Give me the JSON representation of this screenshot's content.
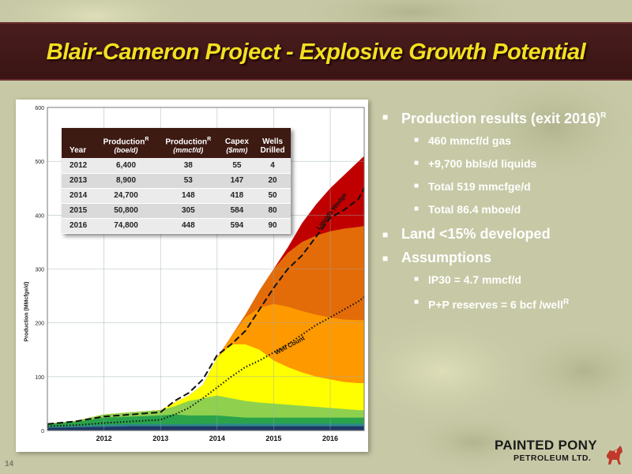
{
  "slide": {
    "title": "Blair-Cameron Project - Explosive Growth Potential",
    "page_number": "14"
  },
  "table": {
    "headers": {
      "year": "Year",
      "prod_boe": "Production",
      "prod_boe_unit": "(boe/d)",
      "prod_mmcf": "Production",
      "prod_mmcf_unit": "(mmcf/d)",
      "capex": "Capex",
      "capex_unit": "($mm)",
      "wells_1": "Wells",
      "wells_2": "Drilled",
      "superscript": "R"
    },
    "rows": [
      {
        "year": "2012",
        "boe": "6,400",
        "mmcf": "38",
        "capex": "55",
        "wells": "4"
      },
      {
        "year": "2013",
        "boe": "8,900",
        "mmcf": "53",
        "capex": "147",
        "wells": "20"
      },
      {
        "year": "2014",
        "boe": "24,700",
        "mmcf": "148",
        "capex": "418",
        "wells": "50"
      },
      {
        "year": "2015",
        "boe": "50,800",
        "mmcf": "305",
        "capex": "584",
        "wells": "80"
      },
      {
        "year": "2016",
        "boe": "74,800",
        "mmcf": "448",
        "capex": "594",
        "wells": "90"
      }
    ]
  },
  "bullets": {
    "production_results": "Production results (exit 2016)",
    "production_results_sup": "R",
    "gas": "460 mmcf/d gas",
    "liquids": "+9,700 bbls/d liquids",
    "total_mmcfge": "Total 519 mmcfge/d",
    "total_mboe": "Total 86.4 mboe/d",
    "land": "Land <15% developed",
    "assumptions": "Assumptions",
    "ip30": "IP30 = 4.7 mmcf/d",
    "reserves": "P+P reserves = 6 bcf /well",
    "reserves_sup": "R"
  },
  "logo": {
    "line1": "PAINTED PONY",
    "line2": "PETROLEUM LTD."
  },
  "colors": {
    "title_bar": "#3f1717",
    "title_text": "#f3e020",
    "table_header": "#3d1a12",
    "layer_navy": "#1f3864",
    "layer_teal": "#2f8a8a",
    "layer_green": "#2aa34a",
    "layer_lightgreen": "#8fd14f",
    "layer_yellow": "#ffff00",
    "layer_orange": "#ff9900",
    "layer_darkorange": "#e36c09",
    "layer_red": "#c00000"
  },
  "chart_data": {
    "type": "area",
    "ylabel": "Production (MMcfge/d)",
    "ylim": [
      0,
      600
    ],
    "yticks": [
      0,
      100,
      200,
      300,
      400,
      500,
      600
    ],
    "xlim": [
      2011.0,
      2016.6
    ],
    "xticks": [
      {
        "label": "2012",
        "x": 2012.0
      },
      {
        "label": "2013",
        "x": 2013.0
      },
      {
        "label": "2014",
        "x": 2014.0
      },
      {
        "label": "2015",
        "x": 2015.0
      },
      {
        "label": "2016",
        "x": 2016.0
      }
    ],
    "grid": true,
    "x": [
      2011.0,
      2011.5,
      2012.0,
      2012.5,
      2013.0,
      2013.25,
      2013.5,
      2013.75,
      2014.0,
      2014.25,
      2014.5,
      2014.75,
      2015.0,
      2015.25,
      2015.5,
      2015.75,
      2016.0,
      2016.25,
      2016.5,
      2016.6
    ],
    "stack_tops": [
      {
        "name": "navy",
        "color": "#1f3864",
        "values": [
          5,
          6,
          7,
          8,
          8,
          8,
          8,
          8,
          8,
          8,
          8,
          8,
          8,
          8,
          8,
          8,
          8,
          8,
          8,
          8
        ]
      },
      {
        "name": "teal",
        "color": "#2f8a8a",
        "values": [
          7,
          9,
          11,
          12,
          12,
          12,
          12,
          12,
          13,
          13,
          13,
          13,
          13,
          13,
          13,
          13,
          13,
          13,
          13,
          13
        ]
      },
      {
        "name": "green",
        "color": "#2aa34a",
        "values": [
          12,
          16,
          24,
          26,
          28,
          30,
          28,
          28,
          28,
          26,
          24,
          24,
          24,
          24,
          24,
          24,
          24,
          24,
          24,
          24
        ]
      },
      {
        "name": "lightgreen",
        "color": "#8fd14f",
        "values": [
          13,
          18,
          30,
          34,
          38,
          45,
          55,
          60,
          65,
          60,
          55,
          52,
          50,
          48,
          46,
          44,
          42,
          40,
          38,
          38
        ]
      },
      {
        "name": "yellow",
        "color": "#ffff00",
        "values": [
          13,
          18,
          30,
          34,
          38,
          52,
          65,
          85,
          135,
          160,
          160,
          150,
          130,
          118,
          108,
          100,
          95,
          90,
          88,
          88
        ]
      },
      {
        "name": "orange",
        "color": "#ff9900",
        "values": [
          13,
          18,
          30,
          34,
          38,
          52,
          65,
          85,
          135,
          175,
          210,
          228,
          235,
          230,
          222,
          215,
          210,
          206,
          205,
          205
        ]
      },
      {
        "name": "darkorange",
        "color": "#e36c09",
        "values": [
          13,
          18,
          30,
          34,
          38,
          52,
          65,
          85,
          135,
          175,
          215,
          260,
          300,
          330,
          350,
          362,
          370,
          375,
          378,
          380
        ]
      },
      {
        "name": "red",
        "color": "#c00000",
        "values": [
          13,
          18,
          30,
          34,
          38,
          52,
          65,
          85,
          135,
          175,
          215,
          260,
          300,
          340,
          385,
          420,
          450,
          475,
          500,
          510
        ]
      }
    ],
    "series": [
      {
        "name": "Liquids Wedge",
        "style": "dashed",
        "color": "#111111",
        "values": [
          12,
          17,
          26,
          30,
          34,
          55,
          70,
          95,
          140,
          160,
          185,
          225,
          265,
          300,
          325,
          360,
          395,
          410,
          430,
          450
        ]
      },
      {
        "name": "Well Count",
        "style": "dotted",
        "color": "#111111",
        "values": [
          8,
          10,
          14,
          17,
          20,
          30,
          42,
          60,
          80,
          100,
          118,
          130,
          145,
          160,
          178,
          196,
          210,
          225,
          240,
          248
        ]
      }
    ],
    "annotations": [
      {
        "text": "Liquids Wedge",
        "x": 2016.05,
        "y": 405,
        "angle": -52
      },
      {
        "text": "Well Count",
        "x": 2015.3,
        "y": 155,
        "angle": -28
      }
    ]
  }
}
